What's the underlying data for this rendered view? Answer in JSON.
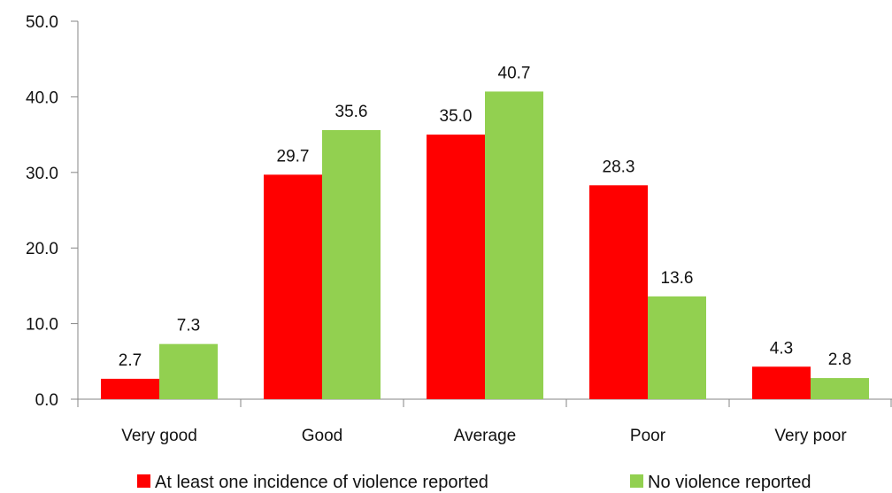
{
  "chart_data": {
    "type": "bar",
    "categories": [
      "Very good",
      "Good",
      "Average",
      "Poor",
      "Very poor"
    ],
    "series": [
      {
        "name": "At least one incidence of violence reported",
        "color": "#ff0000",
        "values": [
          2.7,
          29.7,
          35.0,
          28.3,
          4.3
        ]
      },
      {
        "name": "No violence reported",
        "color": "#92d050",
        "values": [
          7.3,
          35.6,
          40.7,
          13.6,
          2.8
        ]
      }
    ],
    "ylim": [
      0,
      50
    ],
    "y_ticks": [
      0,
      10,
      20,
      30,
      40,
      50
    ],
    "y_tick_labels": [
      "0.0",
      "10.0",
      "20.0",
      "30.0",
      "40.0",
      "50.0"
    ],
    "data_labels": [
      [
        "2.7",
        "29.7",
        "35.0",
        "28.3",
        "4.3"
      ],
      [
        "7.3",
        "35.6",
        "40.7",
        "13.6",
        "2.8"
      ]
    ],
    "grid": false,
    "legend": "bottom"
  }
}
